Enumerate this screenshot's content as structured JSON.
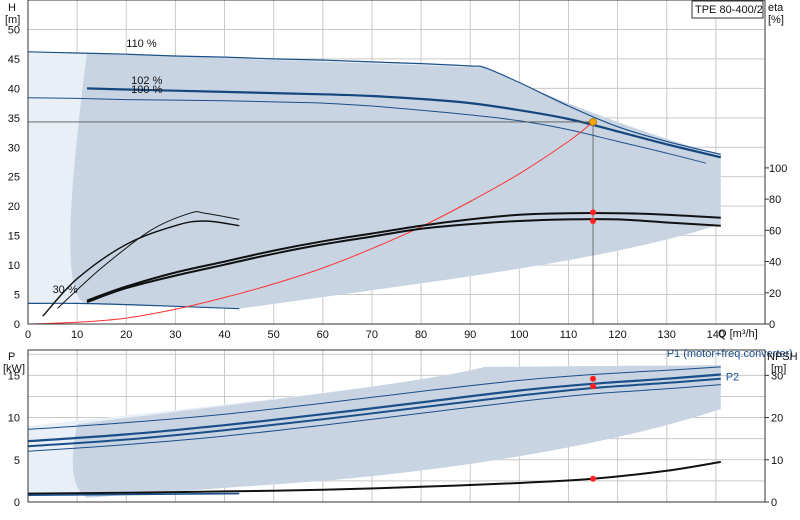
{
  "chart_data": [
    {
      "type": "line",
      "product_label": "TPE 80-400/2",
      "ylabel_left_name": "H",
      "ylabel_left_unit": "[m]",
      "ylabel_right_name": "eta",
      "ylabel_right_unit": "[%]",
      "xlabel": "Q [m³/h]",
      "xlim": [
        0,
        150
      ],
      "ylim_left": [
        0,
        55
      ],
      "ylim_right": [
        0,
        100
      ],
      "x_ticks": [
        "0",
        "10",
        "20",
        "30",
        "40",
        "50",
        "60",
        "70",
        "80",
        "90",
        "100",
        "110",
        "120",
        "130",
        "140"
      ],
      "y_ticks_left": [
        "0",
        "5",
        "10",
        "15",
        "20",
        "25",
        "30",
        "35",
        "40",
        "45",
        "50"
      ],
      "y_ticks_right": [
        "0",
        "20",
        "40",
        "60",
        "80",
        "100"
      ],
      "grid": true,
      "duty_point": {
        "x": 115,
        "y": 34.3,
        "color": "#f5a800"
      },
      "area_color": "#c8d4e2",
      "head_curves": [
        {
          "label": "110 %",
          "label_at": [
            20,
            47
          ],
          "x": [
            0,
            10,
            20,
            30,
            40,
            50,
            60,
            70,
            80,
            90,
            93,
            100,
            110,
            120,
            130,
            141
          ],
          "y": [
            46.2,
            46,
            45.8,
            45.5,
            45.3,
            45,
            44.8,
            44.5,
            44.2,
            43.8,
            43.5,
            41,
            37,
            33.5,
            31,
            28.8
          ]
        },
        {
          "label": "102 %",
          "label_at": [
            21,
            40.7
          ],
          "x": [
            12,
            20,
            30,
            40,
            50,
            60,
            70,
            80,
            90,
            100,
            110,
            120,
            130,
            141
          ],
          "y": [
            40,
            39.8,
            39.6,
            39.4,
            39.2,
            39,
            38.7,
            38.2,
            37.5,
            36.3,
            34.8,
            32.7,
            30.5,
            28.3
          ]
        },
        {
          "label": "100 %",
          "label_at": [
            21,
            39.2
          ],
          "x": [
            0,
            10,
            20,
            30,
            40,
            50,
            60,
            70,
            80,
            90,
            100,
            110,
            120,
            130,
            138
          ],
          "y": [
            38.4,
            38.3,
            38.1,
            38,
            37.9,
            37.7,
            37.5,
            37,
            36.3,
            35.5,
            34.5,
            33,
            31,
            29,
            27.3
          ]
        },
        {
          "label": "30 %",
          "label_at": [
            5,
            5.3
          ],
          "x": [
            0,
            10,
            20,
            30,
            43
          ],
          "y": [
            3.5,
            3.5,
            3.3,
            3,
            2.6
          ]
        }
      ],
      "system_curve": {
        "color": "#ff3333",
        "x": [
          0,
          10,
          20,
          30,
          40,
          50,
          60,
          70,
          80,
          90,
          100,
          110,
          115
        ],
        "y": [
          0,
          0.3,
          1,
          2.5,
          4.5,
          6.8,
          9.5,
          12.8,
          16.5,
          20.8,
          25.5,
          31,
          34.3
        ]
      },
      "efficiency_curves": [
        {
          "x": [
            12,
            20,
            30,
            40,
            50,
            60,
            70,
            80,
            90,
            100,
            110,
            120,
            130,
            141
          ],
          "y": [
            15,
            24,
            33,
            40,
            47,
            53,
            58,
            63,
            67,
            70,
            71,
            71,
            70,
            68
          ]
        },
        {
          "x": [
            12,
            20,
            30,
            40,
            50,
            60,
            70,
            80,
            90,
            100,
            110,
            120,
            130,
            141
          ],
          "y": [
            14,
            23,
            31,
            38,
            45,
            51,
            56,
            61,
            64,
            66,
            67,
            67,
            65,
            63
          ]
        },
        {
          "x": [
            3,
            10,
            20,
            30,
            36,
            43
          ],
          "y": [
            5,
            29,
            51,
            63,
            66,
            63
          ]
        },
        {
          "x": [
            6,
            15,
            25,
            33,
            36,
            43
          ],
          "y": [
            10,
            36,
            60,
            71,
            71,
            67
          ]
        }
      ],
      "efficiency_points": [
        {
          "x": 115,
          "y": 71.5
        },
        {
          "x": 115,
          "y": 66
        }
      ]
    },
    {
      "type": "line",
      "ylabel_left_name": "P",
      "ylabel_left_unit": "[kW]",
      "ylabel_right_name": "NPSH",
      "ylabel_right_unit": "[m]",
      "xlim": [
        0,
        150
      ],
      "ylim_left": [
        0,
        18
      ],
      "ylim_right": [
        0,
        36
      ],
      "y_ticks_left": [
        "0",
        "5",
        "10",
        "15"
      ],
      "y_ticks_right": [
        "0",
        "10",
        "20",
        "30"
      ],
      "grid": true,
      "series_labels": [
        {
          "text": "P1 (motor+freq.converter)",
          "at": [
            130,
            17.2
          ],
          "color": "#1a4f8a"
        },
        {
          "text": "P2",
          "at": [
            142,
            14.4
          ],
          "color": "#1a4f8a"
        }
      ],
      "power_curves": [
        {
          "x": [
            0,
            20,
            40,
            60,
            80,
            100,
            115,
            130,
            141
          ],
          "y": [
            8.6,
            9.4,
            10.4,
            11.7,
            13.1,
            14.4,
            15.1,
            15.6,
            16.0
          ]
        },
        {
          "x": [
            0,
            20,
            40,
            60,
            80,
            100,
            115,
            130,
            141
          ],
          "y": [
            7.2,
            8.0,
            9.1,
            10.4,
            11.8,
            13.2,
            14.0,
            14.6,
            15.1
          ]
        },
        {
          "x": [
            0,
            20,
            40,
            60,
            80,
            100,
            115,
            130,
            141
          ],
          "y": [
            6.6,
            7.4,
            8.5,
            9.8,
            11.2,
            12.6,
            13.5,
            14.1,
            14.6
          ]
        },
        {
          "x": [
            0,
            20,
            40,
            60,
            80,
            100,
            115,
            130,
            141
          ],
          "y": [
            6.0,
            6.8,
            7.8,
            9.1,
            10.5,
            11.9,
            12.8,
            13.4,
            13.9
          ]
        }
      ],
      "power_points": [
        {
          "x": 115,
          "y": 14.6
        },
        {
          "x": 115,
          "y": 13.7
        }
      ],
      "npsh_curve": {
        "x": [
          0,
          20,
          40,
          60,
          80,
          100,
          115,
          130,
          141
        ],
        "y": [
          2.0,
          2.2,
          2.5,
          2.9,
          3.6,
          4.5,
          5.5,
          7.4,
          9.5
        ]
      },
      "npsh_point": {
        "x": 115,
        "y": 5.5
      },
      "npsh_low_curve": {
        "x": [
          0,
          20,
          43
        ],
        "y": [
          0.8,
          0.9,
          1.0
        ]
      }
    }
  ]
}
